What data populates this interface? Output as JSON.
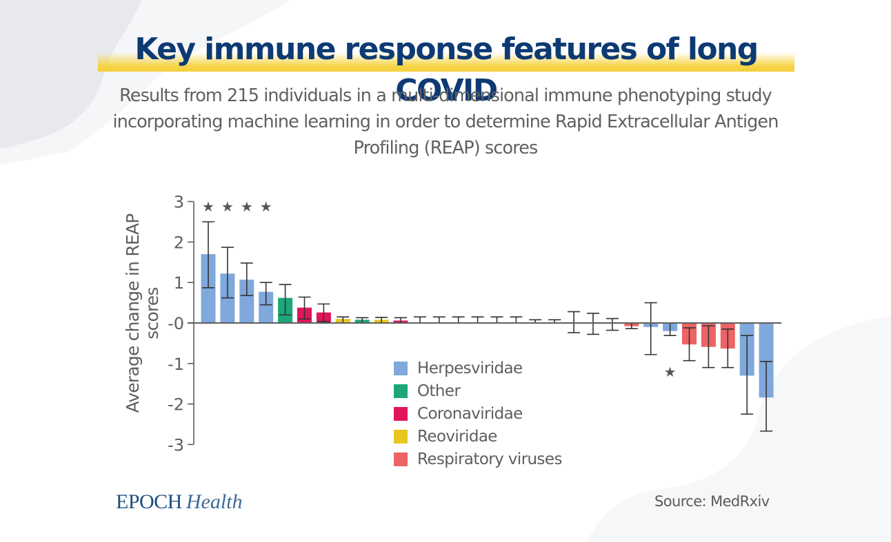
{
  "title": "Key immune response features of long COVID",
  "subtitle": "Results from 215 individuals in a multi-dimensional immune phenotyping study incorporating machine learning in order to determine Rapid Extracellular Antigen Profiling (REAP) scores",
  "brand": {
    "name": "EPOCH",
    "suffix": "Health"
  },
  "source": "Source: MedRxiv",
  "colors": {
    "title": "#0d3a73",
    "highlight": "#f6d54a",
    "Herpesviridae": "#7fa8dc",
    "Other": "#1ea67a",
    "Coronaviridae": "#e0155c",
    "Reoviridae": "#e9c520",
    "Respiratory viruses": "#ec6464",
    "axis": "#5e5e5e",
    "errorbar": "#333333",
    "star": "#555555"
  },
  "chart_data": {
    "type": "bar",
    "title": "Key immune response features of long COVID",
    "xlabel": "",
    "ylabel": "Average change in REAP scores",
    "ylim": [
      -3,
      3
    ],
    "yticks": [
      3,
      2,
      1,
      0,
      -1,
      -2,
      -3
    ],
    "ytick_labels": [
      "3",
      "2",
      "1",
      "-0",
      "-1",
      "-2",
      "-3"
    ],
    "grid": false,
    "legend_position": "center-bottom",
    "legend": [
      "Herpesviridae",
      "Other",
      "Coronaviridae",
      "Reoviridae",
      "Respiratory viruses"
    ],
    "significance_marker": "★",
    "bars": [
      {
        "group": "Herpesviridae",
        "value": 1.7,
        "err_low": 0.87,
        "err_high": 2.5,
        "significant": true
      },
      {
        "group": "Herpesviridae",
        "value": 1.22,
        "err_low": 0.62,
        "err_high": 1.87,
        "significant": true
      },
      {
        "group": "Herpesviridae",
        "value": 1.07,
        "err_low": 0.68,
        "err_high": 1.48,
        "significant": true
      },
      {
        "group": "Herpesviridae",
        "value": 0.77,
        "err_low": 0.45,
        "err_high": 1.0,
        "significant": true
      },
      {
        "group": "Other",
        "value": 0.62,
        "err_low": 0.2,
        "err_high": 0.95,
        "significant": false
      },
      {
        "group": "Coronaviridae",
        "value": 0.38,
        "err_low": 0.1,
        "err_high": 0.64,
        "significant": false
      },
      {
        "group": "Coronaviridae",
        "value": 0.26,
        "err_low": 0.03,
        "err_high": 0.47,
        "significant": false
      },
      {
        "group": "Reoviridae",
        "value": 0.1,
        "err_low": 0.0,
        "err_high": 0.15,
        "significant": false
      },
      {
        "group": "Other",
        "value": 0.08,
        "err_low": 0.0,
        "err_high": 0.13,
        "significant": false
      },
      {
        "group": "Reoviridae",
        "value": 0.08,
        "err_low": 0.0,
        "err_high": 0.14,
        "significant": false
      },
      {
        "group": "Coronaviridae",
        "value": 0.06,
        "err_low": 0.0,
        "err_high": 0.13,
        "significant": false
      },
      {
        "group": "none",
        "value": 0.0,
        "err_low": 0.0,
        "err_high": 0.15,
        "significant": false
      },
      {
        "group": "none",
        "value": 0.0,
        "err_low": 0.0,
        "err_high": 0.15,
        "significant": false
      },
      {
        "group": "none",
        "value": 0.0,
        "err_low": 0.0,
        "err_high": 0.15,
        "significant": false
      },
      {
        "group": "none",
        "value": 0.0,
        "err_low": 0.0,
        "err_high": 0.15,
        "significant": false
      },
      {
        "group": "none",
        "value": 0.0,
        "err_low": 0.0,
        "err_high": 0.15,
        "significant": false
      },
      {
        "group": "none",
        "value": 0.0,
        "err_low": 0.0,
        "err_high": 0.15,
        "significant": false
      },
      {
        "group": "none",
        "value": 0.0,
        "err_low": 0.0,
        "err_high": 0.08,
        "significant": false
      },
      {
        "group": "none",
        "value": 0.0,
        "err_low": 0.0,
        "err_high": 0.08,
        "significant": false
      },
      {
        "group": "none",
        "value": 0.0,
        "err_low": -0.24,
        "err_high": 0.28,
        "significant": false
      },
      {
        "group": "none",
        "value": 0.0,
        "err_low": -0.28,
        "err_high": 0.24,
        "significant": false
      },
      {
        "group": "none",
        "value": 0.0,
        "err_low": -0.18,
        "err_high": 0.11,
        "significant": false
      },
      {
        "group": "Respiratory viruses",
        "value": -0.08,
        "err_low": -0.14,
        "err_high": 0.0,
        "significant": false
      },
      {
        "group": "Herpesviridae",
        "value": -0.1,
        "err_low": -0.78,
        "err_high": 0.5,
        "significant": false
      },
      {
        "group": "Herpesviridae",
        "value": -0.2,
        "err_low": -0.31,
        "err_high": 0.0,
        "significant": true
      },
      {
        "group": "Respiratory viruses",
        "value": -0.53,
        "err_low": -0.93,
        "err_high": -0.12,
        "significant": false
      },
      {
        "group": "Respiratory viruses",
        "value": -0.59,
        "err_low": -1.1,
        "err_high": -0.07,
        "significant": false
      },
      {
        "group": "Respiratory viruses",
        "value": -0.63,
        "err_low": -1.1,
        "err_high": -0.15,
        "significant": false
      },
      {
        "group": "Herpesviridae",
        "value": -1.3,
        "err_low": -2.25,
        "err_high": -0.31,
        "significant": false
      },
      {
        "group": "Herpesviridae",
        "value": -1.84,
        "err_low": -2.67,
        "err_high": -0.95,
        "significant": false
      }
    ]
  }
}
